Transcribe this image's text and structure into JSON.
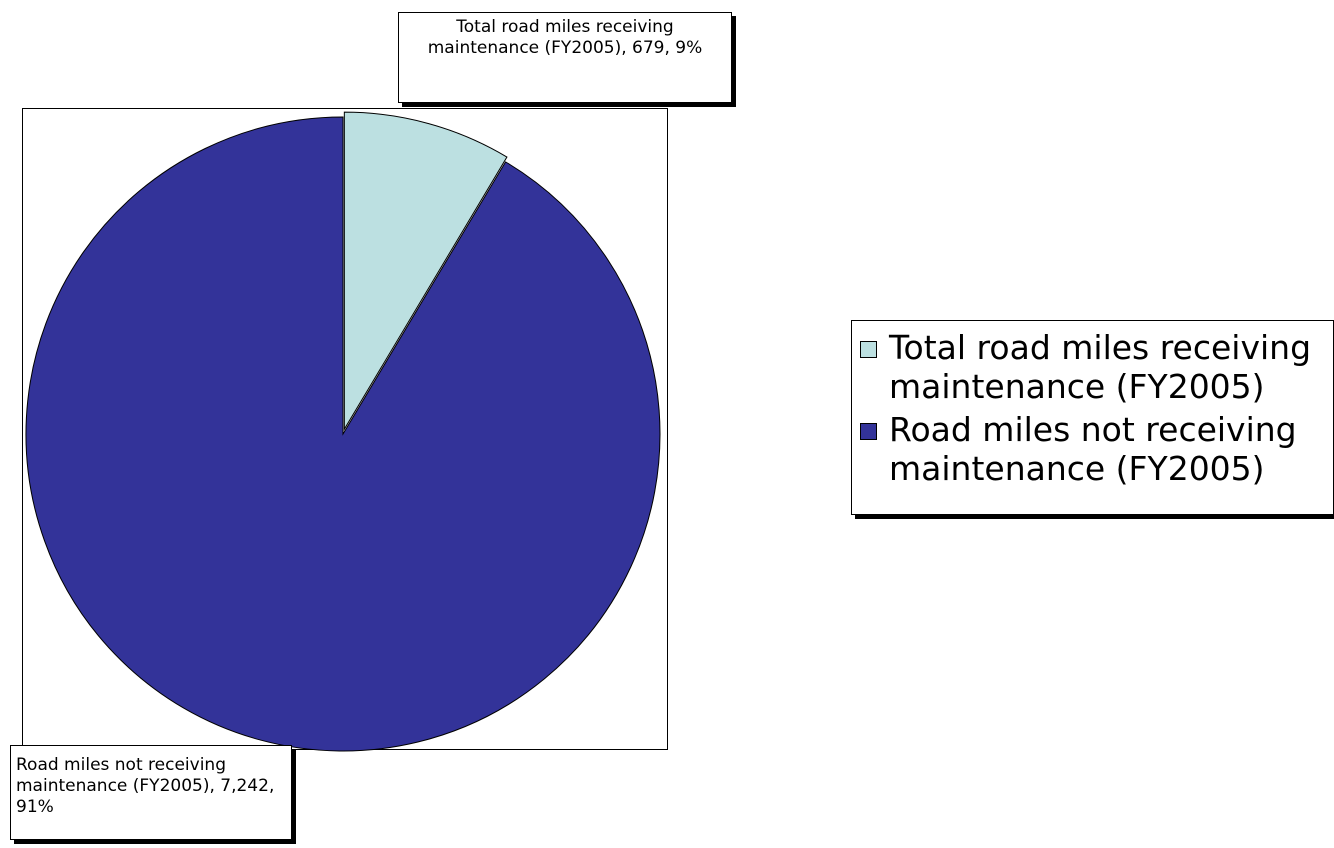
{
  "chart_data": {
    "type": "pie",
    "title": "",
    "slices": [
      {
        "name": "Total road miles receiving maintenance (FY2005)",
        "value": 679,
        "percent": 9,
        "color": "#bce0e1",
        "label": "Total road miles receiving maintenance (FY2005), 679, 9%"
      },
      {
        "name": "Road miles not receiving maintenance (FY2005)",
        "value": 7242,
        "percent": 91,
        "color": "#333399",
        "label": "Road miles not receiving maintenance (FY2005), 7,242, 91%"
      }
    ],
    "exploded_slice": "Total road miles receiving maintenance (FY2005)",
    "legend_position": "right"
  },
  "legend": {
    "items": [
      "Total road miles receiving maintenance (FY2005)",
      "Road miles not receiving maintenance (FY2005)"
    ]
  }
}
